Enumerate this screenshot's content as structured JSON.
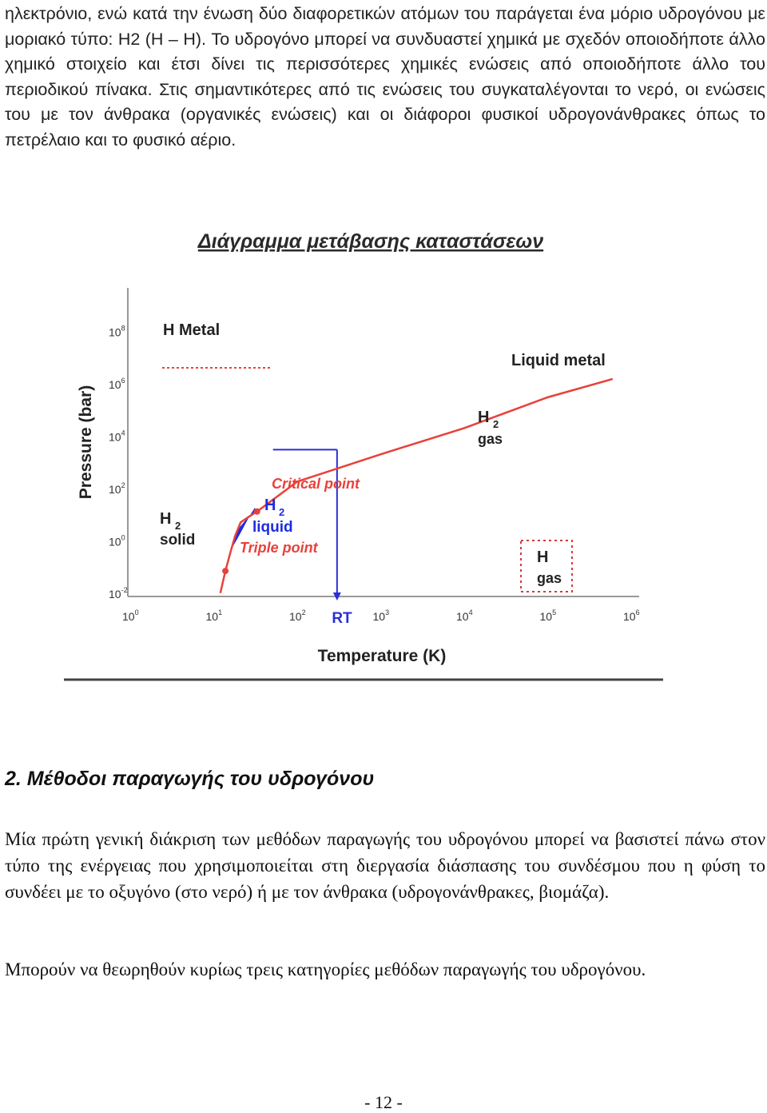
{
  "intro_paragraph": "ηλεκτρόνιο, ενώ κατά την ένωση δύο διαφορετικών ατόμων του παράγεται ένα μόριο υδρογόνου με μοριακό τύπο: H2 (H – H). Το υδρογόνο μπορεί να συνδυαστεί χημικά με σχεδόν οποιοδήποτε άλλο χημικό στοιχείο και έτσι δίνει τις περισσότερες χημικές ενώσεις από οποιοδήποτε άλλο του περιοδικού πίνακα. Στις σημαντικότερες από τις ενώσεις του συγκαταλέγονται το νερό, οι ενώσεις του με τον άνθρακα (οργανικές ενώσεις) και οι διάφοροι φυσικοί υδρογονάνθρακες όπως το πετρέλαιο και το φυσικό αέριο.",
  "figure": {
    "title": "Διάγραμμα μετάβασης καταστάσεων",
    "regions": {
      "h_metal": "H Metal",
      "liquid_metal": "Liquid metal",
      "h2_gas_main": "H",
      "h2_gas_sub": "2",
      "h2_gas_word": "gas",
      "h2_solid_main": "H",
      "h2_solid_sub": "2",
      "h2_solid_word": "solid",
      "h2_liquid_main": "H",
      "h2_liquid_sub": "2",
      "h2_liquid_word": "liquid",
      "h_gas_main": "H",
      "h_gas_word": "gas"
    },
    "annotations": {
      "critical_point": "Critical point",
      "triple_point": "Triple point",
      "room_temperature": "RT"
    },
    "colors": {
      "phase_boundary": "#e8413a",
      "liquid_region": "#1f2be0",
      "rt_line": "#2a2fd8",
      "dotted_box": "#d23a3a"
    }
  },
  "chart_data": {
    "type": "line",
    "title": "Διάγραμμα μετάβασης καταστάσεων",
    "xlabel": "Temperature (K)",
    "ylabel": "Pressure (bar)",
    "x_scale": "log",
    "y_scale": "log",
    "xlim": [
      1,
      1000000
    ],
    "ylim": [
      0.01,
      100000000
    ],
    "x_ticks": [
      {
        "base": "10",
        "exp": "0"
      },
      {
        "base": "10",
        "exp": "1"
      },
      {
        "base": "10",
        "exp": "2"
      },
      {
        "base": "10",
        "exp": "3"
      },
      {
        "base": "10",
        "exp": "4"
      },
      {
        "base": "10",
        "exp": "5"
      },
      {
        "base": "10",
        "exp": "6"
      }
    ],
    "y_ticks": [
      {
        "base": "10",
        "exp": "8"
      },
      {
        "base": "10",
        "exp": "6"
      },
      {
        "base": "10",
        "exp": "4"
      },
      {
        "base": "10",
        "exp": "2"
      },
      {
        "base": "10",
        "exp": "0"
      },
      {
        "base": "10",
        "exp": "-2"
      }
    ],
    "series": [
      {
        "points": [
          [
            12,
            0.01
          ],
          [
            13.8,
            0.07
          ],
          [
            16,
            0.4
          ],
          [
            18,
            1.5
          ],
          [
            21,
            5
          ],
          [
            26,
            8
          ],
          [
            33,
            13
          ],
          [
            100,
            180
          ],
          [
            1000,
            2000
          ],
          [
            10000,
            20000
          ],
          [
            100000,
            300000
          ],
          [
            600000,
            1500000
          ]
        ]
      }
    ],
    "metal_boundary_pressure": 4000000,
    "metal_boundary_x_range": [
      1,
      50
    ],
    "critical_point": [
      33,
      13
    ],
    "triple_point": [
      13.8,
      0.07
    ],
    "room_temperature": {
      "x": 300,
      "y_top": 3000
    }
  },
  "section": {
    "heading": "2. Μέθοδοι παραγωγής του υδρογόνου",
    "paragraph1": "Μία πρώτη γενική διάκριση των μεθόδων παραγωγής του υδρογόνου μπορεί να βασιστεί πάνω στον τύπο της ενέργειας που χρησιμοποιείται στη διεργασία διάσπασης του συνδέσμου που η φύση το συνδέει με το οξυγόνο (στο νερό) ή με τον άνθρακα (υδρογονάνθρακες, βιομάζα).",
    "paragraph2": "Μπορούν να θεωρηθούν κυρίως τρεις κατηγορίες μεθόδων παραγωγής του υδρογόνου."
  },
  "footer": {
    "page_number": "- 12 -"
  }
}
